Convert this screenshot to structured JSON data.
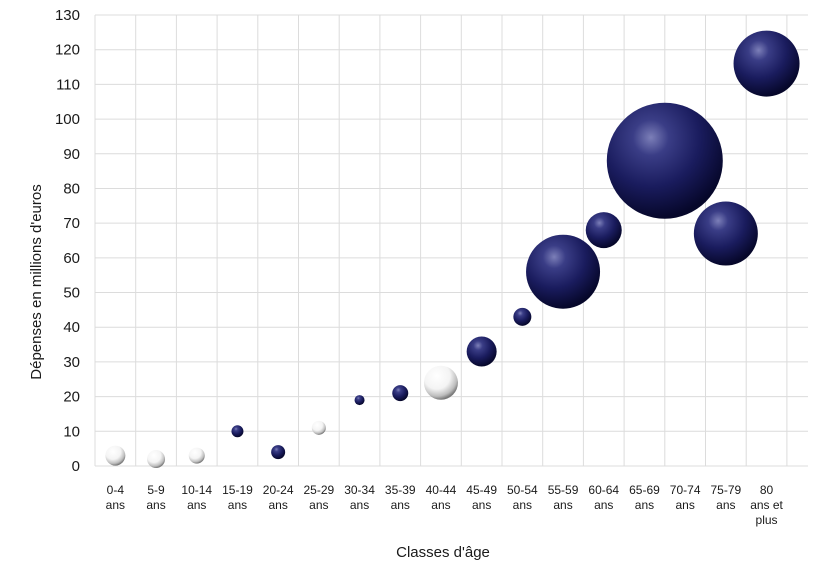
{
  "chart_data": {
    "type": "bubble",
    "xlabel": "Classes d'âge",
    "ylabel": "Dépenses en millions d'euros",
    "ylim": [
      0,
      130
    ],
    "yticks": [
      0,
      10,
      20,
      30,
      40,
      50,
      60,
      70,
      80,
      90,
      100,
      110,
      120,
      130
    ],
    "grid": true,
    "categories": [
      [
        "0-4",
        "ans"
      ],
      [
        "5-9",
        "ans"
      ],
      [
        "10-14",
        "ans"
      ],
      [
        "15-19",
        "ans"
      ],
      [
        "20-24",
        "ans"
      ],
      [
        "25-29",
        "ans"
      ],
      [
        "30-34",
        "ans"
      ],
      [
        "35-39",
        "ans"
      ],
      [
        "40-44",
        "ans"
      ],
      [
        "45-49",
        "ans"
      ],
      [
        "50-54",
        "ans"
      ],
      [
        "55-59",
        "ans"
      ],
      [
        "60-64",
        "ans"
      ],
      [
        "65-69",
        "ans"
      ],
      [
        "70-74",
        "ans"
      ],
      [
        "75-79",
        "ans"
      ],
      [
        "80",
        "ans et",
        "plus"
      ]
    ],
    "points": [
      {
        "x": 0.5,
        "y": 3,
        "size": 10,
        "color": "white"
      },
      {
        "x": 1.5,
        "y": 2,
        "size": 9,
        "color": "white"
      },
      {
        "x": 2.5,
        "y": 3,
        "size": 8,
        "color": "white"
      },
      {
        "x": 3.5,
        "y": 10,
        "size": 6,
        "color": "navy"
      },
      {
        "x": 4.5,
        "y": 4,
        "size": 7,
        "color": "navy"
      },
      {
        "x": 5.5,
        "y": 11,
        "size": 7,
        "color": "white"
      },
      {
        "x": 6.5,
        "y": 19,
        "size": 5,
        "color": "navy"
      },
      {
        "x": 7.5,
        "y": 21,
        "size": 8,
        "color": "navy"
      },
      {
        "x": 8.5,
        "y": 24,
        "size": 17,
        "color": "white"
      },
      {
        "x": 9.5,
        "y": 33,
        "size": 15,
        "color": "navy"
      },
      {
        "x": 10.5,
        "y": 43,
        "size": 9,
        "color": "navy"
      },
      {
        "x": 11.5,
        "y": 56,
        "size": 37,
        "color": "navy"
      },
      {
        "x": 12.5,
        "y": 68,
        "size": 18,
        "color": "navy"
      },
      {
        "x": 14.0,
        "y": 88,
        "size": 58,
        "color": "navy"
      },
      {
        "x": 15.5,
        "y": 67,
        "size": 32,
        "color": "navy"
      },
      {
        "x": 16.5,
        "y": 116,
        "size": 33,
        "color": "navy"
      }
    ]
  }
}
